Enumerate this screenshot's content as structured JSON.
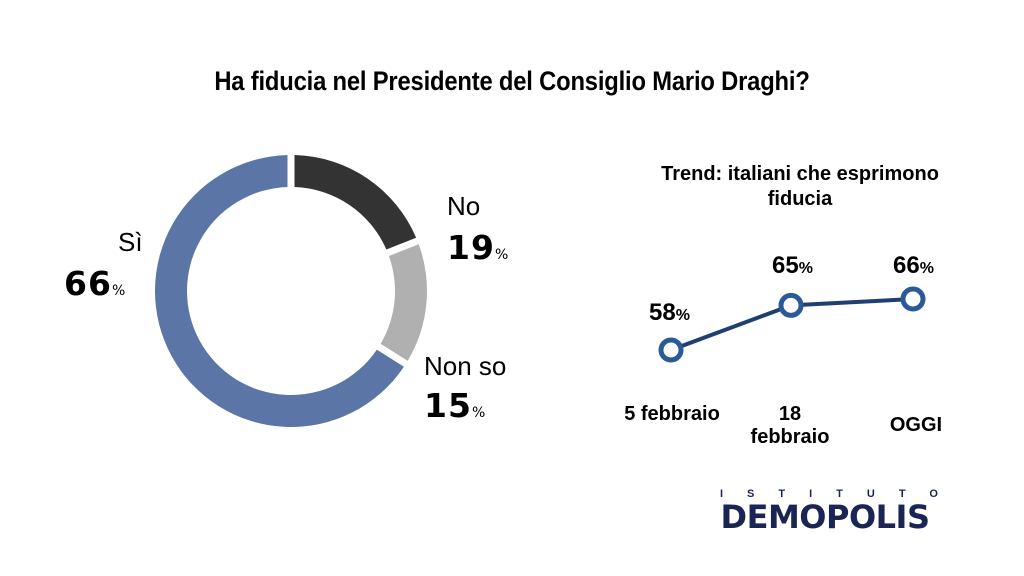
{
  "title": "Ha fiducia nel Presidente del Consiglio Mario Draghi?",
  "chart_data": [
    {
      "type": "pie",
      "style": "donut",
      "slices": [
        {
          "label": "Sì",
          "value": 66,
          "display": "66",
          "color": "#5b76a6"
        },
        {
          "label": "No",
          "value": 19,
          "display": "19",
          "color": "#333333"
        },
        {
          "label": "Non so",
          "value": 15,
          "display": "15",
          "color": "#b0b0b0"
        }
      ],
      "unit": "%"
    },
    {
      "type": "line",
      "title": "Trend: italiani che esprimono fiducia",
      "categories": [
        "5 febbraio",
        "18 febbraio",
        "OGGI"
      ],
      "values": [
        58,
        65,
        66
      ],
      "unit": "%",
      "color": "#2a5a98"
    }
  ],
  "brand": {
    "top": "ISTITUTO",
    "name": "DEMOPOLIS"
  }
}
